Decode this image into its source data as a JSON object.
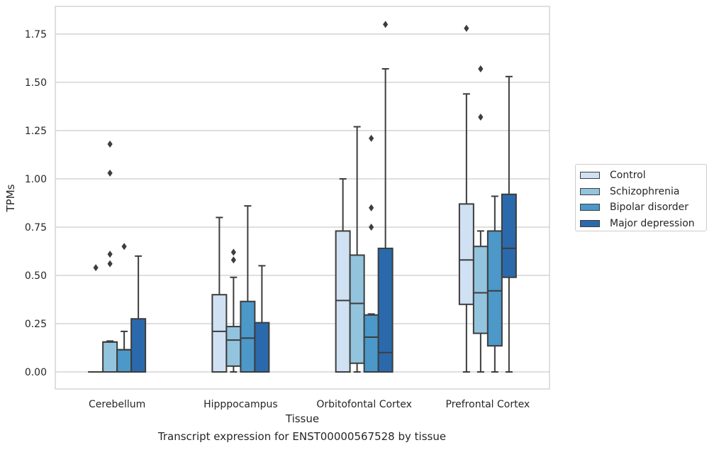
{
  "chart_data": {
    "type": "box",
    "title": "",
    "caption": "Transcript expression for ENST00000567528 by tissue",
    "xlabel": "Tissue",
    "ylabel": "TPMs",
    "ylim": [
      -0.09,
      1.89
    ],
    "yticks": [
      "0.00",
      "0.25",
      "0.50",
      "0.75",
      "1.00",
      "1.25",
      "1.50",
      "1.75"
    ],
    "ytick_values": [
      0,
      0.25,
      0.5,
      0.75,
      1.0,
      1.25,
      1.5,
      1.75
    ],
    "grid": true,
    "legend_position": "right",
    "categories": [
      "Cerebellum",
      "Hipppocampus",
      "Orbitofontal Cortex",
      "Prefrontal Cortex"
    ],
    "series": [
      {
        "name": "Control",
        "color": "#cfe1f2",
        "boxes": [
          {
            "q1": 0,
            "median": 0,
            "q3": 0,
            "whisker_low": 0,
            "whisker_high": 0,
            "outliers": [
              0.54
            ]
          },
          {
            "q1": 0,
            "median": 0.21,
            "q3": 0.4,
            "whisker_low": 0,
            "whisker_high": 0.8,
            "outliers": []
          },
          {
            "q1": 0,
            "median": 0.37,
            "q3": 0.73,
            "whisker_low": 0,
            "whisker_high": 1.0,
            "outliers": []
          },
          {
            "q1": 0.35,
            "median": 0.58,
            "q3": 0.87,
            "whisker_low": 0,
            "whisker_high": 1.44,
            "outliers": [
              1.78
            ]
          }
        ]
      },
      {
        "name": "Schizophrenia",
        "color": "#93c4de",
        "boxes": [
          {
            "q1": 0,
            "median": 0.155,
            "q3": 0.155,
            "whisker_low": 0,
            "whisker_high": 0.16,
            "outliers": [
              0.56,
              0.61,
              1.03,
              1.18
            ]
          },
          {
            "q1": 0.03,
            "median": 0.165,
            "q3": 0.235,
            "whisker_low": 0,
            "whisker_high": 0.49,
            "outliers": [
              0.58,
              0.62
            ]
          },
          {
            "q1": 0.045,
            "median": 0.355,
            "q3": 0.605,
            "whisker_low": 0,
            "whisker_high": 1.27,
            "outliers": []
          },
          {
            "q1": 0.2,
            "median": 0.41,
            "q3": 0.65,
            "whisker_low": 0,
            "whisker_high": 0.73,
            "outliers": [
              1.32,
              1.57
            ]
          }
        ]
      },
      {
        "name": "Bipolar disorder",
        "color": "#4b98c9",
        "boxes": [
          {
            "q1": 0,
            "median": 0.115,
            "q3": 0.115,
            "whisker_low": 0,
            "whisker_high": 0.21,
            "outliers": [
              0.65
            ]
          },
          {
            "q1": 0,
            "median": 0.175,
            "q3": 0.365,
            "whisker_low": 0,
            "whisker_high": 0.86,
            "outliers": []
          },
          {
            "q1": 0,
            "median": 0.18,
            "q3": 0.295,
            "whisker_low": 0,
            "whisker_high": 0.3,
            "outliers": [
              0.75,
              0.85,
              1.21
            ]
          },
          {
            "q1": 0.135,
            "median": 0.42,
            "q3": 0.73,
            "whisker_low": 0,
            "whisker_high": 0.91,
            "outliers": []
          }
        ]
      },
      {
        "name": "Major depression",
        "color": "#2a6aac",
        "boxes": [
          {
            "q1": 0,
            "median": 0,
            "q3": 0.275,
            "whisker_low": 0,
            "whisker_high": 0.6,
            "outliers": []
          },
          {
            "q1": 0,
            "median": 0,
            "q3": 0.255,
            "whisker_low": 0,
            "whisker_high": 0.55,
            "outliers": []
          },
          {
            "q1": 0,
            "median": 0.1,
            "q3": 0.64,
            "whisker_low": 0,
            "whisker_high": 1.57,
            "outliers": [
              1.8
            ]
          },
          {
            "q1": 0.49,
            "median": 0.64,
            "q3": 0.92,
            "whisker_low": 0,
            "whisker_high": 1.53,
            "outliers": []
          }
        ]
      }
    ]
  }
}
